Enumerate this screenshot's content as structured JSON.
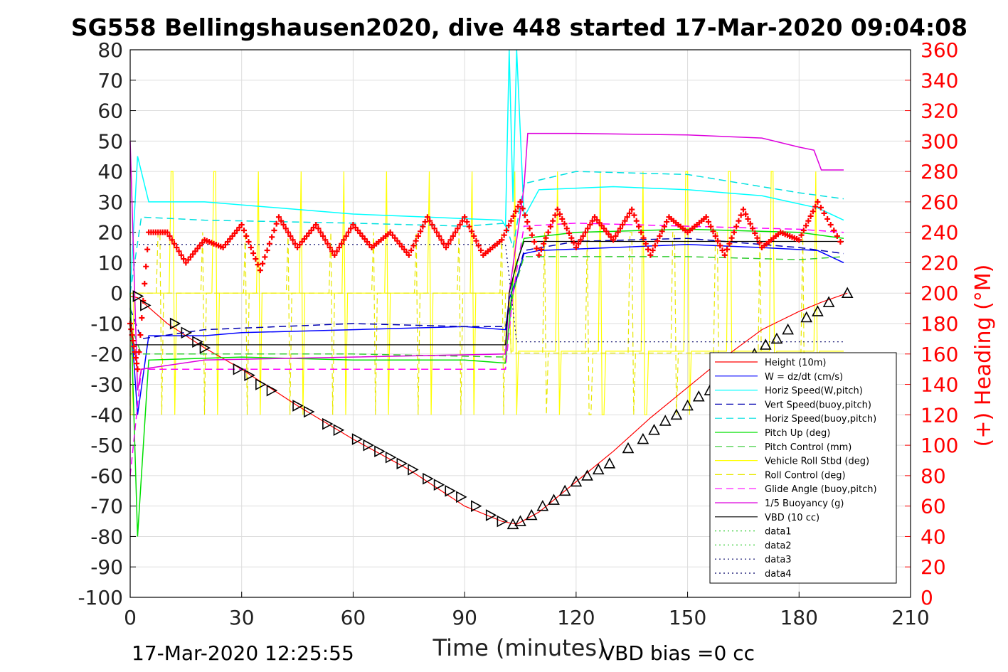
{
  "chart_data": {
    "type": "line",
    "title": "SG558 Bellingshausen2020, dive 448 started 17-Mar-2020 09:04:08",
    "xlabel": "Time (minutes)",
    "ylabel_right": "(+) Heading (°M)",
    "xlim": [
      0,
      210
    ],
    "ylim": [
      -100,
      80
    ],
    "ylim_right": [
      0,
      360
    ],
    "x_ticks": [
      "0",
      "30",
      "60",
      "90",
      "120",
      "150",
      "180",
      "210"
    ],
    "y_ticks": [
      "80",
      "70",
      "60",
      "50",
      "40",
      "30",
      "20",
      "10",
      "0",
      "-10",
      "-20",
      "-30",
      "-40",
      "-50",
      "-60",
      "-70",
      "-80",
      "-90",
      "-100"
    ],
    "y_ticks_right": [
      "360",
      "340",
      "320",
      "300",
      "280",
      "260",
      "240",
      "220",
      "200",
      "180",
      "160",
      "140",
      "120",
      "100",
      "80",
      "60",
      "40",
      "20",
      "0"
    ],
    "grid": true,
    "legend_position": "bottom-right",
    "footer_left": "17-Mar-2020 12:25:55",
    "footer_right": "VBD bias =0 cc",
    "colors": {
      "height": "#ff0000",
      "w": "#0000ff",
      "horiz_speed_w": "#00ffff",
      "vert_speed_buoy": "#0000b0",
      "horiz_speed_buoy": "#00e0e0",
      "pitch": "#00e000",
      "pitch_control": "#33cc33",
      "roll": "#ffff00",
      "roll_control": "#e8e800",
      "glide_angle": "#ff00ff",
      "buoyancy": "#dd00dd",
      "vbd": "#000000",
      "heading": "#ff0000",
      "right_axis": "#ff0000"
    },
    "series": [
      {
        "name": "Height (10m)",
        "key": "height",
        "x": [
          0,
          2,
          10,
          20,
          30,
          45,
          60,
          75,
          90,
          100,
          104,
          110,
          120,
          130,
          140,
          150,
          160,
          170,
          180,
          186,
          193
        ],
        "values": [
          -1,
          -1.5,
          -10,
          -18,
          -25,
          -37,
          -48,
          -58,
          -70,
          -75,
          -76,
          -72,
          -62,
          -52,
          -41,
          -31,
          -21,
          -12,
          -6,
          -3,
          0
        ]
      },
      {
        "name": "W = dz/dt (cm/s)",
        "key": "w",
        "x": [
          0,
          2,
          5,
          20,
          30,
          60,
          90,
          101,
          102,
          104,
          106,
          110,
          130,
          150,
          170,
          185,
          192
        ],
        "values": [
          -5,
          -40,
          -14,
          -14,
          -13,
          -12,
          -11,
          -12,
          -2,
          5,
          13,
          14,
          15,
          16,
          15,
          14,
          10
        ]
      },
      {
        "name": "Horiz Speed(W,pitch)",
        "key": "horiz_speed_w",
        "x": [
          0,
          2,
          5,
          20,
          40,
          60,
          80,
          100,
          101,
          102,
          103,
          104,
          106,
          110,
          130,
          150,
          170,
          185,
          192
        ],
        "values": [
          0,
          45,
          30,
          30,
          28,
          26,
          25,
          24,
          22,
          80,
          30,
          80,
          25,
          34,
          35,
          34,
          32,
          28,
          24
        ]
      },
      {
        "name": "Vert Speed(buoy,pitch)",
        "key": "vert_speed_buoy",
        "x": [
          0,
          3,
          20,
          60,
          90,
          101,
          103,
          106,
          120,
          150,
          180,
          192
        ],
        "values": [
          -5,
          -15,
          -12,
          -10,
          -11,
          -11,
          0,
          14,
          17,
          18,
          15,
          13
        ]
      },
      {
        "name": "Horiz Speed(buoy,pitch)",
        "key": "horiz_speed_buoy",
        "x": [
          0,
          3,
          20,
          60,
          90,
          101,
          103,
          106,
          120,
          150,
          180,
          192
        ],
        "values": [
          0,
          25,
          24,
          23,
          22,
          23,
          15,
          36,
          40,
          39,
          33,
          31
        ]
      },
      {
        "name": "Pitch Up (deg)",
        "key": "pitch",
        "x": [
          0,
          2,
          5,
          30,
          60,
          90,
          101,
          103,
          106,
          120,
          150,
          180,
          192
        ],
        "values": [
          0,
          -80,
          -22,
          -21,
          -22,
          -22,
          -23,
          5,
          18,
          20,
          21,
          20,
          18
        ]
      },
      {
        "name": "Pitch Control (mm)",
        "key": "pitch_control",
        "x": [
          0,
          3,
          30,
          60,
          101,
          103,
          106,
          120,
          150,
          180,
          192
        ],
        "values": [
          -10,
          -20,
          -20,
          -20,
          -21,
          0,
          12,
          12,
          12,
          11,
          12
        ]
      },
      {
        "name": "Vehicle Roll Stbd (deg)",
        "key": "roll",
        "x": [],
        "values": []
      },
      {
        "name": "Roll Control (deg)",
        "key": "roll_control",
        "x": [],
        "values": []
      },
      {
        "name": "Glide Angle (buoy,pitch)",
        "key": "glide_angle",
        "x": [
          0,
          3,
          20,
          60,
          101,
          103,
          106,
          120,
          150,
          180,
          192
        ],
        "values": [
          -60,
          -25,
          -25,
          -25,
          -25,
          0,
          22,
          23,
          22,
          21,
          20
        ]
      },
      {
        "name": "1/5 Buoyancy (g)",
        "key": "buoyancy",
        "x": [
          0,
          2,
          3,
          20,
          60,
          101,
          102,
          106,
          107,
          120,
          150,
          170,
          180,
          184,
          186,
          192
        ],
        "values": [
          50,
          -32,
          -25,
          -22,
          -21,
          -20,
          0,
          35,
          52.5,
          52.5,
          52,
          51,
          48,
          47,
          40.5,
          40.5
        ]
      },
      {
        "name": "VBD (10 cc)",
        "key": "vbd",
        "x": [
          0,
          1,
          2,
          101,
          102,
          104,
          106,
          192
        ],
        "values": [
          -8,
          -17,
          -17,
          -17,
          0,
          10,
          17,
          17
        ]
      },
      {
        "name": "data1",
        "key": "data1",
        "x": [],
        "values": []
      },
      {
        "name": "data2",
        "key": "data2",
        "x": [],
        "values": []
      },
      {
        "name": "data3",
        "key": "data3",
        "x": [
          0,
          101,
          104,
          192
        ],
        "values": [
          16,
          16,
          -16,
          -16
        ]
      },
      {
        "name": "data4",
        "key": "data4",
        "x": [],
        "values": []
      }
    ],
    "heading": {
      "axis": "right",
      "x": [
        0,
        2,
        5,
        10,
        15,
        20,
        25,
        30,
        35,
        40,
        45,
        50,
        55,
        60,
        65,
        70,
        75,
        80,
        85,
        90,
        95,
        100,
        105,
        110,
        115,
        120,
        125,
        130,
        135,
        140,
        145,
        150,
        155,
        160,
        165,
        170,
        175,
        180,
        185,
        192
      ],
      "values": [
        180,
        150,
        240,
        240,
        220,
        235,
        230,
        245,
        215,
        250,
        230,
        245,
        225,
        245,
        230,
        240,
        225,
        250,
        230,
        250,
        225,
        235,
        260,
        225,
        255,
        230,
        250,
        235,
        255,
        225,
        250,
        240,
        250,
        225,
        255,
        230,
        240,
        235,
        260,
        230
      ]
    },
    "vbd_markers": {
      "x": [
        2,
        4,
        12,
        15,
        18,
        20,
        29,
        32,
        35,
        38,
        45,
        48,
        53,
        56,
        61,
        64,
        67,
        70,
        73,
        76,
        80,
        83,
        86,
        89,
        93,
        97,
        100,
        103,
        105,
        108,
        111,
        114,
        117,
        120,
        123,
        126,
        129,
        134,
        138,
        141,
        144,
        147,
        150,
        153,
        156,
        159,
        162,
        168,
        171,
        174,
        177,
        182,
        185,
        188,
        193
      ],
      "values": [
        -1,
        -4,
        -10,
        -13,
        -16,
        -18,
        -25,
        -27,
        -30,
        -32,
        -37,
        -39,
        -43,
        -45,
        -48,
        -50,
        -52,
        -54,
        -56,
        -58,
        -61,
        -63,
        -65,
        -67,
        -70,
        -73,
        -75,
        -76,
        -75,
        -73,
        -70,
        -68,
        -65,
        -62,
        -60,
        -58,
        -56,
        -51,
        -48,
        -45,
        -42,
        -40,
        -37,
        -34,
        -32,
        -30,
        -28,
        -20,
        -17,
        -15,
        -12,
        -8,
        -6,
        -3,
        0
      ]
    }
  }
}
